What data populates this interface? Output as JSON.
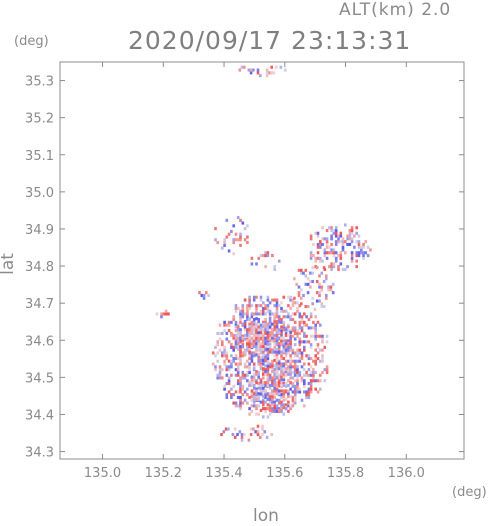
{
  "header": {
    "altitude_label": "ALT(km) 2.0",
    "datetime": "2020/09/17 23:13:31"
  },
  "chart_data": {
    "type": "heatmap",
    "title": "2020/09/17 23:13:31",
    "xlabel": "lon",
    "ylabel": "lat",
    "x_unit": "(deg)",
    "y_unit": "(deg)",
    "xlim": [
      134.86,
      136.19
    ],
    "ylim": [
      34.28,
      35.35
    ],
    "x_ticks": [
      "135.0",
      "135.2",
      "135.4",
      "135.6",
      "135.8",
      "136.0"
    ],
    "y_ticks": [
      "34.3",
      "34.4",
      "34.5",
      "34.6",
      "34.7",
      "34.8",
      "34.9",
      "35.0",
      "35.1",
      "35.2",
      "35.3"
    ],
    "grid": false,
    "colors": {
      "positive": "#e85050",
      "negative": "#5a5ae6",
      "neutral": "#ffffff",
      "frame": "#8c8c8c"
    },
    "clusters": [
      {
        "lon": [
          135.36,
          135.74
        ],
        "lat": [
          34.39,
          34.72
        ],
        "density": 0.55
      },
      {
        "lon": [
          135.42,
          135.62
        ],
        "lat": [
          34.55,
          34.66
        ],
        "density": 0.7
      },
      {
        "lon": [
          135.48,
          135.62
        ],
        "lat": [
          34.4,
          34.55
        ],
        "density": 0.55
      },
      {
        "lon": [
          135.66,
          135.88
        ],
        "lat": [
          34.78,
          34.91
        ],
        "density": 0.35
      },
      {
        "lon": [
          135.62,
          135.76
        ],
        "lat": [
          34.68,
          34.8
        ],
        "density": 0.25
      },
      {
        "lon": [
          135.36,
          135.48
        ],
        "lat": [
          34.83,
          34.93
        ],
        "density": 0.2
      },
      {
        "lon": [
          135.48,
          135.58
        ],
        "lat": [
          34.78,
          34.84
        ],
        "density": 0.15
      },
      {
        "lon": [
          135.38,
          135.56
        ],
        "lat": [
          34.32,
          34.37
        ],
        "density": 0.3
      },
      {
        "lon": [
          135.44,
          135.6
        ],
        "lat": [
          35.31,
          35.34
        ],
        "density": 0.35
      },
      {
        "lon": [
          135.16,
          135.22
        ],
        "lat": [
          34.66,
          34.68
        ],
        "density": 0.4
      },
      {
        "lon": [
          135.3,
          135.36
        ],
        "lat": [
          34.71,
          34.73
        ],
        "density": 0.4
      }
    ]
  }
}
